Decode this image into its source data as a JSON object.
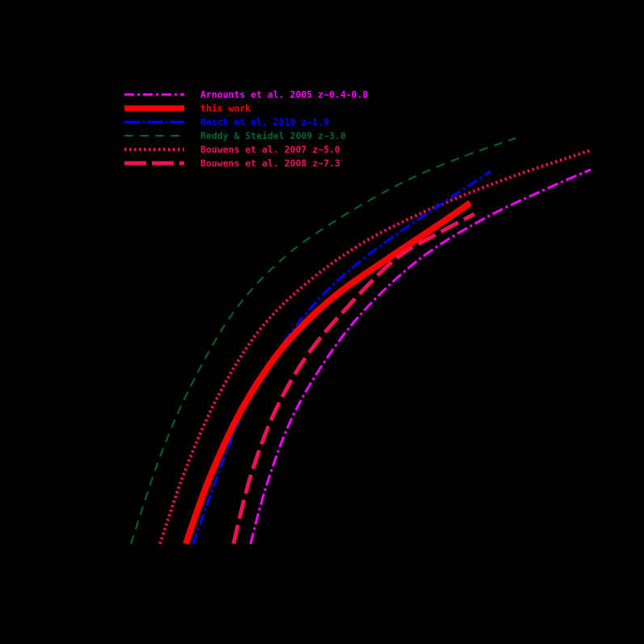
{
  "chart_data": {
    "type": "line",
    "title": "",
    "xlabel": "",
    "ylabel": "",
    "grid": false,
    "background": "#000000",
    "legend_position": "upper-left",
    "note": "Axes, ticks and labels are drawn in black on a black background and are not visible; curve coordinates are given in pixel space (x right, y down).",
    "series": [
      {
        "name": "Arnounts et al. 2005 z~0.4-0.8",
        "color": "#ff00ff",
        "style": "dash-dot",
        "width": 3,
        "points": [
          [
            310,
            673
          ],
          [
            330,
            600
          ],
          [
            360,
            520
          ],
          [
            400,
            450
          ],
          [
            450,
            385
          ],
          [
            520,
            320
          ],
          [
            600,
            270
          ],
          [
            680,
            232
          ],
          [
            731,
            210
          ]
        ]
      },
      {
        "name": "this work",
        "color": "#ff0000",
        "style": "solid",
        "width": 8,
        "points": [
          [
            230,
            673
          ],
          [
            260,
            590
          ],
          [
            300,
            505
          ],
          [
            350,
            430
          ],
          [
            410,
            370
          ],
          [
            480,
            320
          ],
          [
            540,
            280
          ],
          [
            582,
            251
          ]
        ]
      },
      {
        "name": "Oesch et al. 2010 z~1.9",
        "color": "#0000ff",
        "style": "dash-dot",
        "width": 3,
        "points": [
          [
            239,
            673
          ],
          [
            265,
            600
          ],
          [
            300,
            510
          ],
          [
            340,
            440
          ],
          [
            390,
            375
          ],
          [
            450,
            320
          ],
          [
            520,
            270
          ],
          [
            607,
            212
          ]
        ]
      },
      {
        "name": "Reddy & Steidel 2009 z~3.0",
        "color": "#006633",
        "style": "dashed",
        "width": 2,
        "points": [
          [
            162,
            673
          ],
          [
            200,
            560
          ],
          [
            240,
            470
          ],
          [
            290,
            385
          ],
          [
            350,
            320
          ],
          [
            420,
            270
          ],
          [
            500,
            225
          ],
          [
            570,
            195
          ],
          [
            638,
            171
          ]
        ]
      },
      {
        "name": "Bouwens et al. 2007 z~5.0",
        "color": "#ee1155",
        "style": "dotted",
        "width": 4,
        "points": [
          [
            198,
            673
          ],
          [
            230,
            580
          ],
          [
            270,
            490
          ],
          [
            320,
            410
          ],
          [
            380,
            350
          ],
          [
            450,
            300
          ],
          [
            530,
            260
          ],
          [
            630,
            220
          ],
          [
            731,
            186
          ]
        ]
      },
      {
        "name": "Bouwens et al. 2008 z~7.3",
        "color": "#ee1155",
        "style": "long-dashed",
        "width": 5,
        "points": [
          [
            289,
            673
          ],
          [
            310,
            590
          ],
          [
            340,
            510
          ],
          [
            380,
            440
          ],
          [
            430,
            380
          ],
          [
            490,
            320
          ],
          [
            540,
            290
          ],
          [
            587,
            265
          ]
        ]
      }
    ]
  },
  "legend": {
    "items": [
      {
        "label": "Arnounts et al. 2005 z~0.4-0.8",
        "color": "#ff00ff"
      },
      {
        "label": "this work",
        "color": "#ff0000"
      },
      {
        "label": "Oesch et al. 2010 z~1.9",
        "color": "#0000ff"
      },
      {
        "label": "Reddy & Steidel 2009 z~3.0",
        "color": "#006633"
      },
      {
        "label": "Bouwens et al. 2007 z~5.0",
        "color": "#ee1155"
      },
      {
        "label": "Bouwens et al. 2008 z~7.3",
        "color": "#ee1155"
      }
    ]
  }
}
